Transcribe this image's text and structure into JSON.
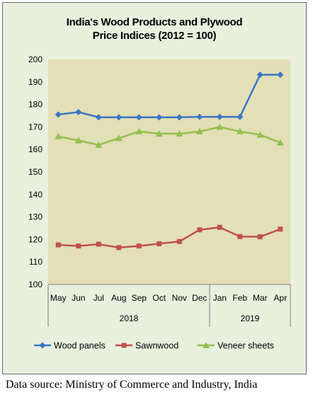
{
  "chart_data": {
    "type": "line",
    "title_line1": "India's Wood Products and Plywood",
    "title_line2": "Price Indices (2012 = 100)",
    "xlabel": "",
    "ylabel": "",
    "ylim": [
      100,
      200
    ],
    "yticks": [
      100,
      110,
      120,
      130,
      140,
      150,
      160,
      170,
      180,
      190,
      200
    ],
    "categories": [
      "May",
      "Jun",
      "Jul",
      "Aug",
      "Sep",
      "Oct",
      "Nov",
      "Dec",
      "Jan",
      "Feb",
      "Mar",
      "Apr"
    ],
    "year_groups": [
      {
        "label": "2018",
        "count": 8
      },
      {
        "label": "2019",
        "count": 4
      }
    ],
    "grid": false,
    "legend_position": "bottom",
    "series": [
      {
        "name": "Wood panels",
        "color": "#3a76c4",
        "marker": "diamond",
        "values": [
          175.5,
          176.6,
          174.3,
          174.3,
          174.3,
          174.3,
          174.3,
          174.5,
          174.5,
          174.5,
          193.2,
          193.2
        ]
      },
      {
        "name": "Sawnwood",
        "color": "#c0504d",
        "marker": "square",
        "values": [
          117.6,
          117.1,
          117.9,
          116.4,
          117.1,
          118.1,
          119.1,
          124.3,
          125.4,
          121.3,
          121.2,
          124.6
        ]
      },
      {
        "name": "Veneer sheets",
        "color": "#92c050",
        "marker": "triangle",
        "values": [
          165.8,
          164.0,
          162.0,
          165.0,
          168.0,
          167.0,
          167.0,
          168.0,
          170.0,
          168.0,
          166.5,
          163.0
        ]
      }
    ]
  },
  "source_note": "Data source: Ministry of Commerce and Industry, India"
}
